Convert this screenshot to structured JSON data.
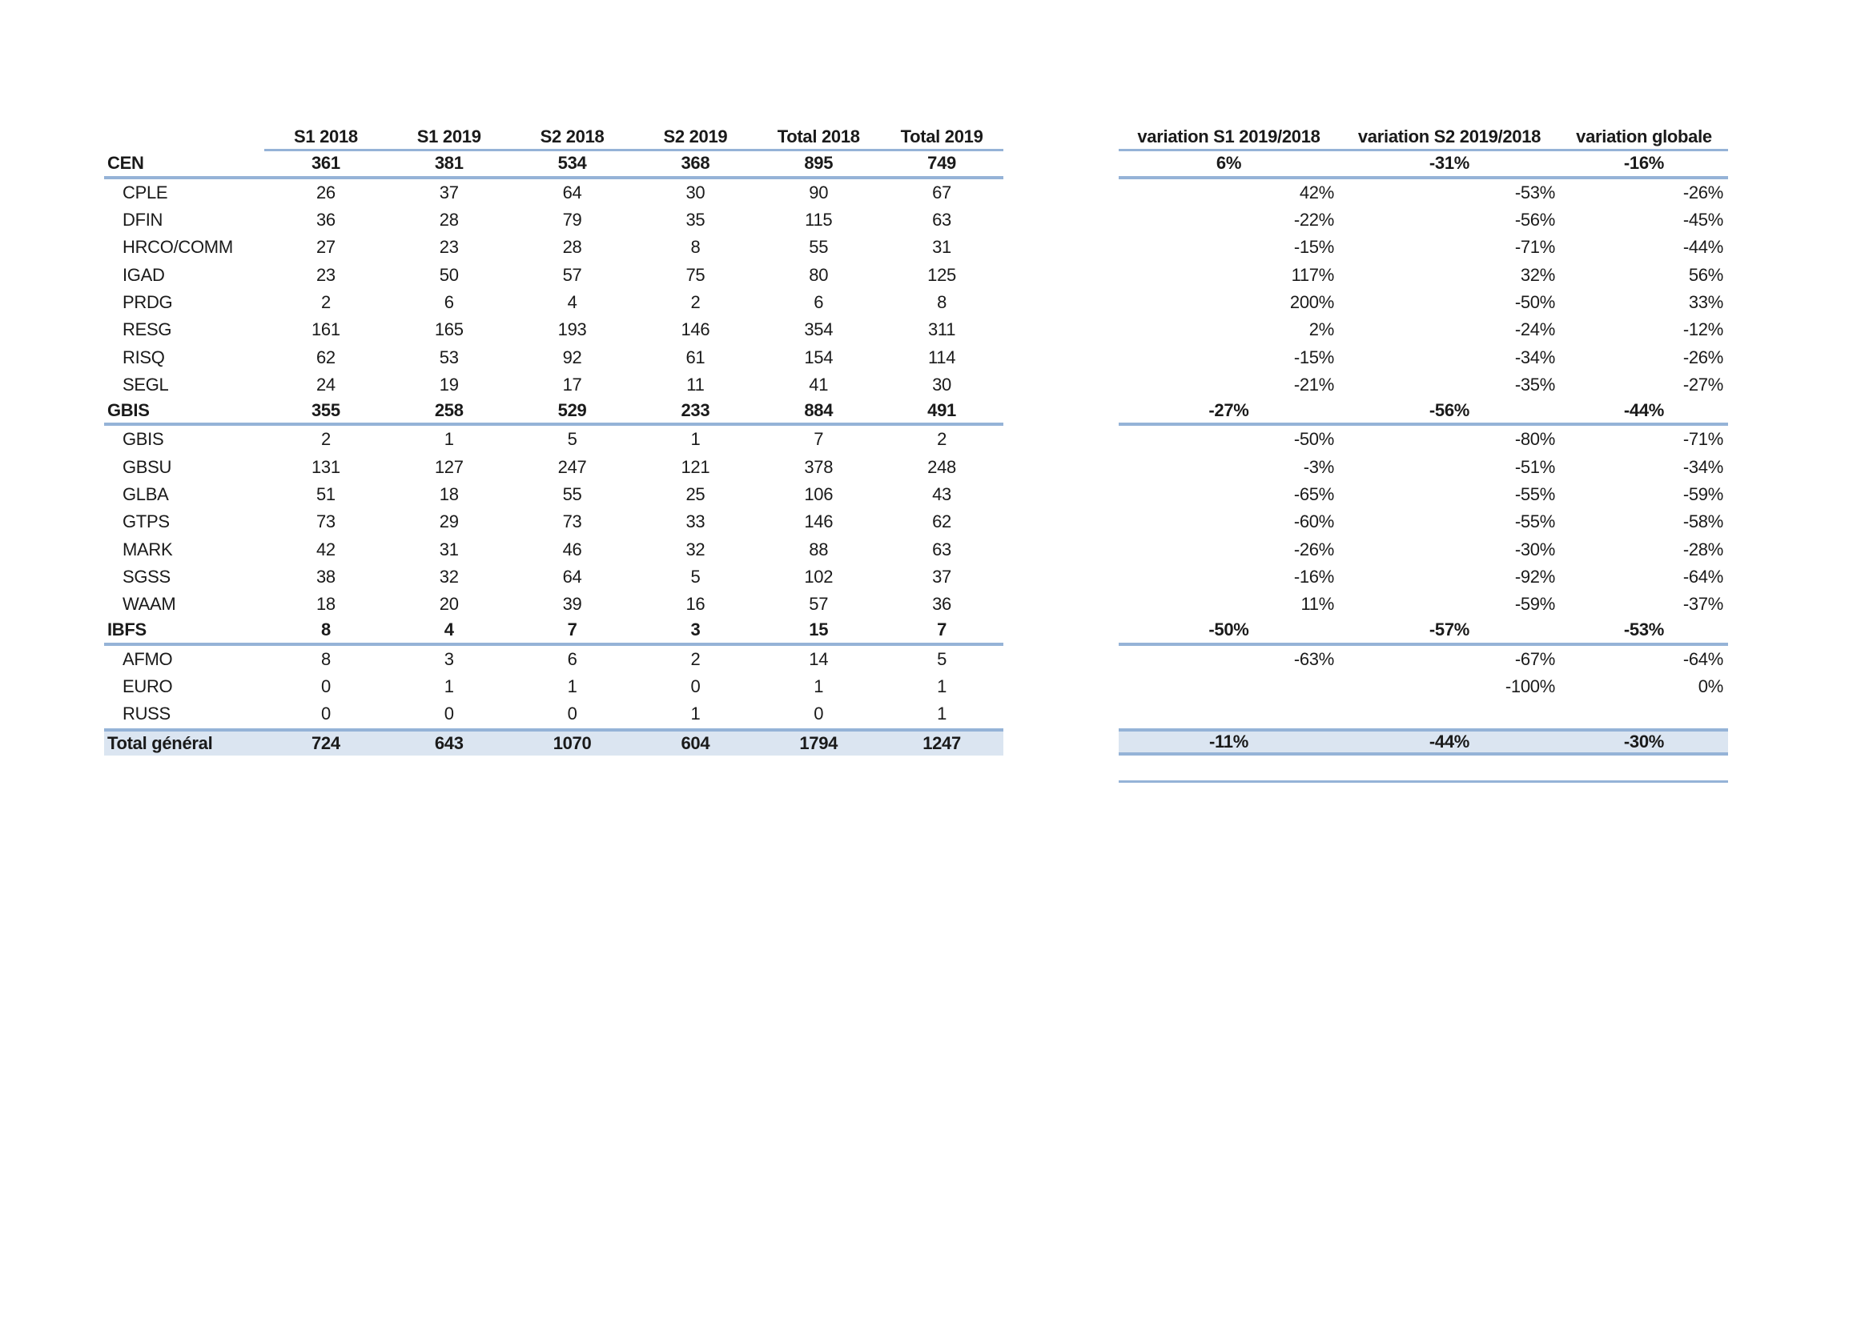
{
  "styles": {
    "line_color": "#95B3D7",
    "total_row_fill": "#DBE5F1",
    "text_color": "#1a1a1a",
    "background": "#ffffff"
  },
  "counts_table": {
    "corner_label": "",
    "columns": [
      "S1 2018",
      "S1 2019",
      "S2 2018",
      "S2 2019",
      "Total 2018",
      "Total 2019"
    ]
  },
  "variation_table": {
    "columns": [
      "variation S1 2019/2018",
      "variation S2 2019/2018",
      "variation globale"
    ]
  },
  "rows": [
    {
      "type": "section",
      "label": "CEN",
      "values": [
        "361",
        "381",
        "534",
        "368",
        "895",
        "749"
      ],
      "variations": [
        "6%",
        "-31%",
        "-16%"
      ]
    },
    {
      "type": "detail",
      "label": "CPLE",
      "values": [
        "26",
        "37",
        "64",
        "30",
        "90",
        "67"
      ],
      "variations": [
        "42%",
        "-53%",
        "-26%"
      ]
    },
    {
      "type": "detail",
      "label": "DFIN",
      "values": [
        "36",
        "28",
        "79",
        "35",
        "115",
        "63"
      ],
      "variations": [
        "-22%",
        "-56%",
        "-45%"
      ]
    },
    {
      "type": "detail",
      "label": "HRCO/COMM",
      "values": [
        "27",
        "23",
        "28",
        "8",
        "55",
        "31"
      ],
      "variations": [
        "-15%",
        "-71%",
        "-44%"
      ]
    },
    {
      "type": "detail",
      "label": "IGAD",
      "values": [
        "23",
        "50",
        "57",
        "75",
        "80",
        "125"
      ],
      "variations": [
        "117%",
        "32%",
        "56%"
      ]
    },
    {
      "type": "detail",
      "label": "PRDG",
      "values": [
        "2",
        "6",
        "4",
        "2",
        "6",
        "8"
      ],
      "variations": [
        "200%",
        "-50%",
        "33%"
      ]
    },
    {
      "type": "detail",
      "label": "RESG",
      "values": [
        "161",
        "165",
        "193",
        "146",
        "354",
        "311"
      ],
      "variations": [
        "2%",
        "-24%",
        "-12%"
      ]
    },
    {
      "type": "detail",
      "label": "RISQ",
      "values": [
        "62",
        "53",
        "92",
        "61",
        "154",
        "114"
      ],
      "variations": [
        "-15%",
        "-34%",
        "-26%"
      ]
    },
    {
      "type": "detail",
      "label": "SEGL",
      "values": [
        "24",
        "19",
        "17",
        "11",
        "41",
        "30"
      ],
      "variations": [
        "-21%",
        "-35%",
        "-27%"
      ]
    },
    {
      "type": "section",
      "label": "GBIS",
      "values": [
        "355",
        "258",
        "529",
        "233",
        "884",
        "491"
      ],
      "variations": [
        "-27%",
        "-56%",
        "-44%"
      ]
    },
    {
      "type": "detail",
      "label": "GBIS",
      "values": [
        "2",
        "1",
        "5",
        "1",
        "7",
        "2"
      ],
      "variations": [
        "-50%",
        "-80%",
        "-71%"
      ]
    },
    {
      "type": "detail",
      "label": "GBSU",
      "values": [
        "131",
        "127",
        "247",
        "121",
        "378",
        "248"
      ],
      "variations": [
        "-3%",
        "-51%",
        "-34%"
      ]
    },
    {
      "type": "detail",
      "label": "GLBA",
      "values": [
        "51",
        "18",
        "55",
        "25",
        "106",
        "43"
      ],
      "variations": [
        "-65%",
        "-55%",
        "-59%"
      ]
    },
    {
      "type": "detail",
      "label": "GTPS",
      "values": [
        "73",
        "29",
        "73",
        "33",
        "146",
        "62"
      ],
      "variations": [
        "-60%",
        "-55%",
        "-58%"
      ]
    },
    {
      "type": "detail",
      "label": "MARK",
      "values": [
        "42",
        "31",
        "46",
        "32",
        "88",
        "63"
      ],
      "variations": [
        "-26%",
        "-30%",
        "-28%"
      ]
    },
    {
      "type": "detail",
      "label": "SGSS",
      "values": [
        "38",
        "32",
        "64",
        "5",
        "102",
        "37"
      ],
      "variations": [
        "-16%",
        "-92%",
        "-64%"
      ]
    },
    {
      "type": "detail",
      "label": "WAAM",
      "values": [
        "18",
        "20",
        "39",
        "16",
        "57",
        "36"
      ],
      "variations": [
        "11%",
        "-59%",
        "-37%"
      ]
    },
    {
      "type": "section",
      "label": "IBFS",
      "values": [
        "8",
        "4",
        "7",
        "3",
        "15",
        "7"
      ],
      "variations": [
        "-50%",
        "-57%",
        "-53%"
      ]
    },
    {
      "type": "detail",
      "label": "AFMO",
      "values": [
        "8",
        "3",
        "6",
        "2",
        "14",
        "5"
      ],
      "variations": [
        "-63%",
        "-67%",
        "-64%"
      ]
    },
    {
      "type": "detail",
      "label": "EURO",
      "values": [
        "0",
        "1",
        "1",
        "0",
        "1",
        "1"
      ],
      "variations": [
        "",
        "-100%",
        "0%"
      ]
    },
    {
      "type": "detail",
      "label": "RUSS",
      "values": [
        "0",
        "0",
        "0",
        "1",
        "0",
        "1"
      ],
      "variations": [
        "",
        "",
        ""
      ]
    },
    {
      "type": "total",
      "label": "Total général",
      "values": [
        "724",
        "643",
        "1070",
        "604",
        "1794",
        "1247"
      ],
      "variations": [
        "-11%",
        "-44%",
        "-30%"
      ]
    }
  ]
}
